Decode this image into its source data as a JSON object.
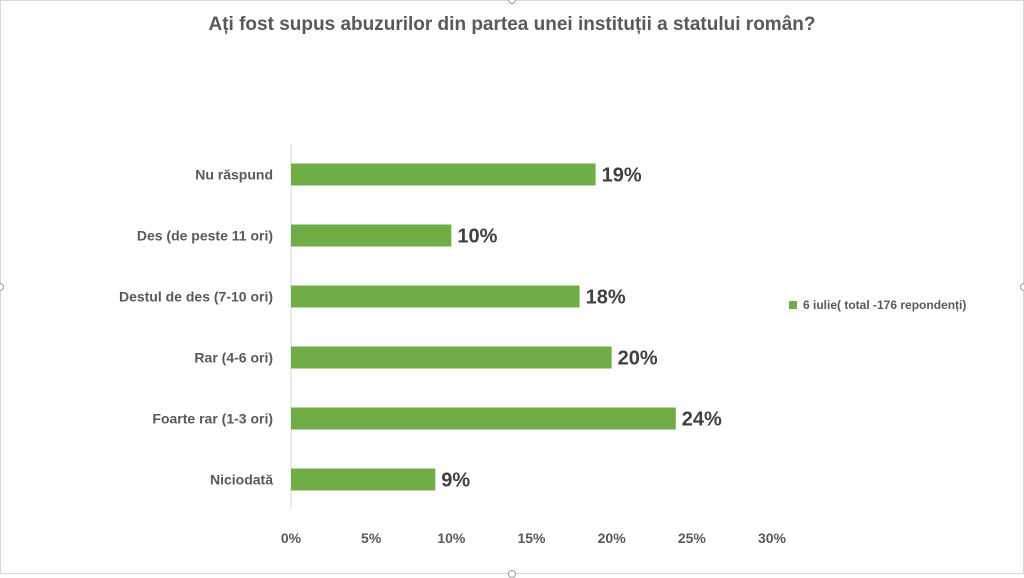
{
  "colors": {
    "bar": "#70ad47",
    "axis": "#d9d9d9",
    "text": "#595959"
  },
  "chart_data": {
    "type": "bar",
    "orientation": "horizontal",
    "title": "Ați fost supus abuzurilor din partea unei instituții a statului român?",
    "categories": [
      "Nu răspund",
      "Des (de peste 11 ori)",
      "Destul de des (7-10 ori)",
      "Rar (4-6 ori)",
      "Foarte rar (1-3 ori)",
      "Niciodată"
    ],
    "series": [
      {
        "name": "6 iulie( total -176 repondenți)",
        "values": [
          19,
          10,
          18,
          20,
          24,
          9
        ]
      }
    ],
    "data_labels": [
      "19%",
      "10%",
      "18%",
      "20%",
      "24%",
      "9%"
    ],
    "x_ticks": [
      "0%",
      "5%",
      "10%",
      "15%",
      "20%",
      "25%",
      "30%"
    ],
    "xlim": [
      0,
      30
    ],
    "grid": false,
    "legend_position": "right"
  }
}
